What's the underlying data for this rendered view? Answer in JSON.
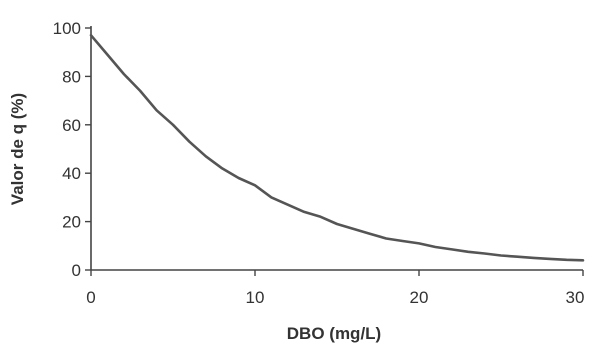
{
  "chart_data": {
    "type": "line",
    "title": "",
    "xlabel": "DBO (mg/L)",
    "ylabel": "Valor de q (%)",
    "xlim": [
      0,
      30
    ],
    "ylim": [
      0,
      100
    ],
    "xticks": [
      0,
      10,
      20,
      30
    ],
    "yticks": [
      0,
      20,
      40,
      60,
      80,
      100
    ],
    "grid": false,
    "legend": "none",
    "line_color": "#555555",
    "axis_color": "#444444",
    "series": [
      {
        "x": [
          0,
          1,
          2,
          3,
          4,
          5,
          6,
          7,
          8,
          9,
          10,
          11,
          12,
          13,
          14,
          15,
          16,
          17,
          18,
          19,
          20,
          21,
          22,
          23,
          24,
          25,
          26,
          27,
          28,
          29,
          30
        ],
        "values": [
          97,
          89,
          81,
          74,
          66,
          60,
          53,
          47,
          42,
          38,
          35,
          30,
          27,
          24,
          22,
          19,
          17,
          15,
          13,
          12,
          11,
          9.5,
          8.5,
          7.5,
          6.8,
          6,
          5.5,
          5,
          4.6,
          4.2,
          4
        ]
      }
    ]
  }
}
